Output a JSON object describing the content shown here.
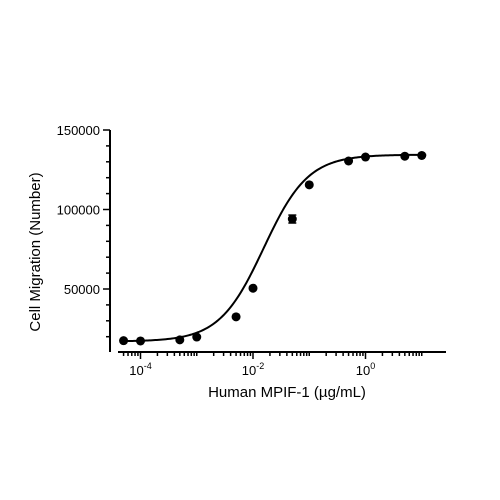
{
  "chart_data": {
    "type": "scatter",
    "title": "",
    "xlabel": "Human MPIF-1 (µg/mL)",
    "ylabel": "Cell Migration (Number)",
    "x_scale": "log",
    "xlim": [
      5e-05,
      12
    ],
    "ylim": [
      15000,
      150000
    ],
    "y_ticks": [
      50000,
      100000,
      150000
    ],
    "y_tick_labels": [
      "50000",
      "100000",
      "150000"
    ],
    "x_major_ticks": [
      0.0001,
      0.01,
      1
    ],
    "x_tick_labels": [
      {
        "base": "10",
        "exp": "-4"
      },
      {
        "base": "10",
        "exp": "-2"
      },
      {
        "base": "10",
        "exp": "0"
      }
    ],
    "series": [
      {
        "points": [
          {
            "x": 5e-05,
            "y": 17500
          },
          {
            "x": 0.0001,
            "y": 17300
          },
          {
            "x": 0.0005,
            "y": 18000
          },
          {
            "x": 0.001,
            "y": 19800
          },
          {
            "x": 0.005,
            "y": 32500
          },
          {
            "x": 0.01,
            "y": 50500
          },
          {
            "x": 0.05,
            "y": 94000,
            "err": 2500
          },
          {
            "x": 0.1,
            "y": 115500
          },
          {
            "x": 0.5,
            "y": 130500
          },
          {
            "x": 1,
            "y": 133000
          },
          {
            "x": 5,
            "y": 133500
          },
          {
            "x": 10,
            "y": 134000
          }
        ],
        "fit_curve": {
          "model": "four-parameter logistic",
          "bottom": 17000,
          "top": 134500,
          "ec50": 0.0155,
          "hill": 1.1
        },
        "color": "#000000"
      }
    ],
    "grid": false,
    "legend": "none"
  }
}
